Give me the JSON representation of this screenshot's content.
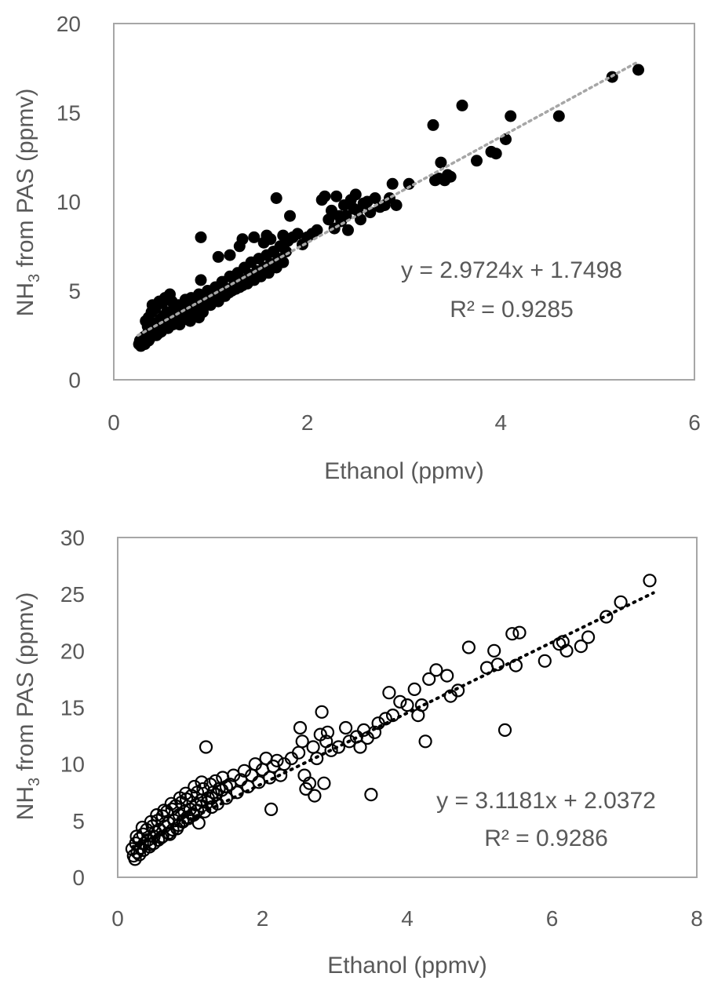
{
  "chart_data": [
    {
      "type": "scatter",
      "xlabel": "Ethanol (ppmv)",
      "ylabel_main": "NH",
      "ylabel_sub": "3",
      "ylabel_rest": " from PAS (ppmv)",
      "xlim": [
        0,
        6
      ],
      "ylim": [
        0,
        20
      ],
      "xticks": [
        "0",
        "2",
        "4",
        "6"
      ],
      "yticks": [
        "0",
        "5",
        "10",
        "15",
        "20"
      ],
      "marker": "filled",
      "marker_color": "#000000",
      "trend_color": "#a6a6a6",
      "equation": "y = 2.9724x + 1.7498",
      "r2": "R² = 0.9285",
      "trend": {
        "slope": 2.9724,
        "intercept": 1.7498,
        "x_start": 0.25,
        "x_end": 5.4
      },
      "points": [
        [
          0.26,
          2.0
        ],
        [
          0.27,
          2.2
        ],
        [
          0.3,
          2.1
        ],
        [
          0.31,
          2.4
        ],
        [
          0.33,
          2.3
        ],
        [
          0.35,
          2.6
        ],
        [
          0.36,
          2.2
        ],
        [
          0.38,
          2.8
        ],
        [
          0.4,
          2.5
        ],
        [
          0.41,
          3.0
        ],
        [
          0.43,
          2.7
        ],
        [
          0.45,
          3.2
        ],
        [
          0.46,
          2.6
        ],
        [
          0.48,
          3.4
        ],
        [
          0.5,
          2.9
        ],
        [
          0.52,
          3.6
        ],
        [
          0.54,
          3.1
        ],
        [
          0.55,
          3.8
        ],
        [
          0.57,
          3.3
        ],
        [
          0.6,
          3.5
        ],
        [
          0.62,
          4.0
        ],
        [
          0.63,
          3.4
        ],
        [
          0.65,
          3.7
        ],
        [
          0.67,
          4.2
        ],
        [
          0.7,
          3.6
        ],
        [
          0.72,
          4.0
        ],
        [
          0.74,
          4.5
        ],
        [
          0.76,
          3.8
        ],
        [
          0.78,
          4.2
        ],
        [
          0.8,
          4.6
        ],
        [
          0.33,
          3.3
        ],
        [
          0.36,
          3.5
        ],
        [
          0.39,
          3.8
        ],
        [
          0.4,
          4.2
        ],
        [
          0.43,
          4.0
        ],
        [
          0.47,
          4.4
        ],
        [
          0.5,
          4.3
        ],
        [
          0.53,
          4.6
        ],
        [
          0.58,
          4.8
        ],
        [
          0.6,
          4.4
        ],
        [
          0.35,
          3.0
        ],
        [
          0.42,
          2.9
        ],
        [
          0.47,
          3.1
        ],
        [
          0.55,
          3.0
        ],
        [
          0.62,
          3.2
        ],
        [
          0.68,
          3.1
        ],
        [
          0.73,
          3.4
        ],
        [
          0.79,
          3.3
        ],
        [
          0.84,
          3.6
        ],
        [
          0.88,
          3.5
        ],
        [
          0.82,
          4.0
        ],
        [
          0.85,
          4.3
        ],
        [
          0.88,
          4.8
        ],
        [
          0.9,
          5.6
        ],
        [
          0.92,
          3.8
        ],
        [
          0.95,
          4.4
        ],
        [
          0.97,
          5.0
        ],
        [
          1.0,
          4.2
        ],
        [
          1.02,
          4.6
        ],
        [
          1.05,
          5.2
        ],
        [
          1.08,
          4.4
        ],
        [
          1.1,
          4.9
        ],
        [
          1.12,
          5.5
        ],
        [
          1.15,
          4.7
        ],
        [
          1.18,
          5.1
        ],
        [
          1.2,
          5.8
        ],
        [
          1.22,
          5.0
        ],
        [
          1.25,
          5.4
        ],
        [
          1.28,
          6.0
        ],
        [
          1.3,
          5.2
        ],
        [
          1.32,
          5.6
        ],
        [
          1.35,
          6.3
        ],
        [
          1.38,
          5.4
        ],
        [
          1.4,
          5.9
        ],
        [
          1.42,
          6.6
        ],
        [
          1.45,
          5.6
        ],
        [
          1.48,
          6.1
        ],
        [
          1.5,
          6.8
        ],
        [
          1.52,
          5.8
        ],
        [
          1.55,
          6.3
        ],
        [
          1.58,
          7.0
        ],
        [
          1.6,
          6.0
        ],
        [
          1.62,
          6.5
        ],
        [
          1.65,
          7.2
        ],
        [
          1.68,
          6.3
        ],
        [
          1.7,
          6.8
        ],
        [
          1.72,
          7.5
        ],
        [
          1.75,
          6.6
        ],
        [
          1.78,
          7.2
        ],
        [
          1.8,
          7.8
        ],
        [
          0.9,
          8.0
        ],
        [
          1.08,
          6.9
        ],
        [
          1.2,
          7.0
        ],
        [
          1.3,
          7.5
        ],
        [
          1.33,
          7.9
        ],
        [
          1.45,
          8.0
        ],
        [
          1.55,
          7.7
        ],
        [
          1.58,
          8.1
        ],
        [
          1.62,
          7.9
        ],
        [
          1.68,
          10.2
        ],
        [
          1.75,
          8.1
        ],
        [
          1.82,
          9.2
        ],
        [
          1.85,
          8.0
        ],
        [
          1.9,
          8.2
        ],
        [
          1.95,
          7.6
        ],
        [
          2.0,
          8.0
        ],
        [
          2.05,
          8.2
        ],
        [
          2.1,
          8.4
        ],
        [
          2.15,
          10.1
        ],
        [
          2.18,
          10.3
        ],
        [
          2.22,
          9.0
        ],
        [
          2.25,
          9.5
        ],
        [
          2.28,
          8.5
        ],
        [
          2.3,
          10.3
        ],
        [
          2.33,
          9.2
        ],
        [
          2.35,
          8.9
        ],
        [
          2.38,
          9.8
        ],
        [
          2.4,
          9.2
        ],
        [
          2.42,
          8.4
        ],
        [
          2.45,
          10.1
        ],
        [
          2.48,
          9.6
        ],
        [
          2.5,
          10.4
        ],
        [
          2.52,
          9.5
        ],
        [
          2.55,
          9.0
        ],
        [
          2.58,
          9.9
        ],
        [
          2.62,
          10.0
        ],
        [
          2.65,
          9.4
        ],
        [
          2.7,
          10.2
        ],
        [
          2.75,
          9.7
        ],
        [
          2.8,
          9.8
        ],
        [
          2.85,
          10.2
        ],
        [
          2.88,
          11.0
        ],
        [
          2.92,
          9.8
        ],
        [
          3.05,
          11.0
        ],
        [
          3.3,
          14.3
        ],
        [
          3.32,
          11.2
        ],
        [
          3.36,
          11.3
        ],
        [
          3.38,
          12.2
        ],
        [
          3.42,
          11.2
        ],
        [
          3.45,
          11.5
        ],
        [
          3.48,
          11.4
        ],
        [
          3.6,
          15.4
        ],
        [
          3.75,
          12.3
        ],
        [
          3.9,
          12.8
        ],
        [
          3.95,
          12.7
        ],
        [
          4.05,
          13.5
        ],
        [
          4.1,
          14.8
        ],
        [
          4.6,
          14.8
        ],
        [
          5.15,
          17.0
        ],
        [
          5.42,
          17.4
        ],
        [
          0.28,
          1.9
        ],
        [
          0.32,
          2.0
        ],
        [
          0.37,
          2.3
        ],
        [
          0.44,
          2.5
        ],
        [
          0.49,
          2.7
        ],
        [
          0.56,
          2.9
        ],
        [
          0.61,
          3.1
        ],
        [
          0.66,
          3.3
        ],
        [
          0.71,
          3.5
        ],
        [
          0.77,
          3.7
        ],
        [
          0.86,
          3.9
        ],
        [
          0.93,
          4.1
        ],
        [
          0.99,
          4.3
        ],
        [
          1.06,
          4.5
        ],
        [
          1.13,
          4.7
        ],
        [
          1.19,
          4.9
        ],
        [
          1.26,
          5.1
        ],
        [
          1.33,
          5.3
        ],
        [
          1.39,
          5.5
        ],
        [
          1.46,
          5.8
        ]
      ]
    },
    {
      "type": "scatter",
      "xlabel": "Ethanol (ppmv)",
      "ylabel_main": "NH",
      "ylabel_sub": "3",
      "ylabel_rest": " from PAS (ppmv)",
      "xlim": [
        0,
        8
      ],
      "ylim": [
        0,
        30
      ],
      "xticks": [
        "0",
        "2",
        "4",
        "6",
        "8"
      ],
      "yticks": [
        "0",
        "5",
        "10",
        "15",
        "20",
        "25",
        "30"
      ],
      "marker": "open",
      "marker_color": "#000000",
      "trend_color": "#000000",
      "equation": "y = 3.1181x + 2.0372",
      "r2": "R² = 0.9286",
      "trend": {
        "slope": 3.1181,
        "intercept": 2.0372,
        "x_start": 0.2,
        "x_end": 7.4
      },
      "points": [
        [
          0.2,
          2.5
        ],
        [
          0.22,
          1.9
        ],
        [
          0.25,
          3.0
        ],
        [
          0.27,
          2.2
        ],
        [
          0.3,
          3.4
        ],
        [
          0.32,
          2.6
        ],
        [
          0.35,
          3.8
        ],
        [
          0.37,
          3.0
        ],
        [
          0.4,
          4.2
        ],
        [
          0.42,
          3.3
        ],
        [
          0.45,
          2.9
        ],
        [
          0.48,
          4.5
        ],
        [
          0.5,
          3.6
        ],
        [
          0.52,
          4.0
        ],
        [
          0.55,
          5.0
        ],
        [
          0.58,
          4.2
        ],
        [
          0.6,
          3.5
        ],
        [
          0.62,
          5.4
        ],
        [
          0.65,
          4.5
        ],
        [
          0.68,
          5.8
        ],
        [
          0.7,
          4.8
        ],
        [
          0.72,
          3.8
        ],
        [
          0.75,
          6.0
        ],
        [
          0.78,
          5.0
        ],
        [
          0.8,
          6.3
        ],
        [
          0.82,
          4.3
        ],
        [
          0.85,
          5.5
        ],
        [
          0.88,
          6.6
        ],
        [
          0.9,
          5.0
        ],
        [
          0.92,
          5.8
        ],
        [
          0.95,
          6.9
        ],
        [
          0.98,
          5.2
        ],
        [
          1.0,
          6.0
        ],
        [
          1.02,
          7.2
        ],
        [
          1.05,
          5.5
        ],
        [
          1.08,
          6.4
        ],
        [
          1.1,
          7.5
        ],
        [
          1.12,
          4.8
        ],
        [
          1.15,
          6.8
        ],
        [
          1.18,
          7.8
        ],
        [
          1.2,
          5.8
        ],
        [
          1.22,
          11.5
        ],
        [
          1.25,
          7.0
        ],
        [
          1.28,
          8.2
        ],
        [
          1.3,
          6.2
        ],
        [
          1.32,
          7.5
        ],
        [
          1.35,
          8.5
        ],
        [
          1.38,
          6.5
        ],
        [
          1.4,
          7.8
        ],
        [
          1.45,
          8.8
        ],
        [
          1.5,
          7.0
        ],
        [
          1.55,
          8.2
        ],
        [
          1.6,
          9.0
        ],
        [
          1.65,
          7.5
        ],
        [
          1.7,
          8.6
        ],
        [
          1.75,
          9.4
        ],
        [
          1.8,
          8.0
        ],
        [
          1.85,
          9.0
        ],
        [
          1.9,
          10.0
        ],
        [
          1.95,
          8.4
        ],
        [
          2.0,
          9.5
        ],
        [
          2.05,
          10.5
        ],
        [
          2.1,
          8.8
        ],
        [
          2.12,
          6.0
        ],
        [
          2.15,
          9.8
        ],
        [
          2.2,
          10.3
        ],
        [
          2.25,
          9.0
        ],
        [
          2.3,
          10.0
        ],
        [
          2.4,
          10.5
        ],
        [
          2.5,
          11.0
        ],
        [
          2.52,
          13.2
        ],
        [
          2.55,
          12.0
        ],
        [
          2.58,
          9.0
        ],
        [
          2.6,
          7.8
        ],
        [
          2.65,
          8.3
        ],
        [
          2.7,
          11.5
        ],
        [
          2.72,
          7.2
        ],
        [
          2.75,
          10.5
        ],
        [
          2.8,
          12.6
        ],
        [
          2.82,
          14.6
        ],
        [
          2.85,
          8.3
        ],
        [
          2.88,
          12.0
        ],
        [
          2.9,
          12.8
        ],
        [
          2.95,
          11.2
        ],
        [
          3.05,
          11.5
        ],
        [
          3.15,
          13.2
        ],
        [
          3.2,
          12.0
        ],
        [
          3.3,
          12.4
        ],
        [
          3.35,
          11.5
        ],
        [
          3.4,
          13.0
        ],
        [
          3.45,
          12.3
        ],
        [
          3.5,
          7.3
        ],
        [
          3.55,
          12.8
        ],
        [
          3.6,
          13.6
        ],
        [
          3.7,
          14.0
        ],
        [
          3.75,
          16.3
        ],
        [
          3.8,
          14.3
        ],
        [
          3.9,
          15.5
        ],
        [
          4.0,
          15.2
        ],
        [
          4.1,
          16.6
        ],
        [
          4.15,
          14.3
        ],
        [
          4.2,
          15.2
        ],
        [
          4.25,
          12.0
        ],
        [
          4.3,
          17.5
        ],
        [
          4.4,
          18.3
        ],
        [
          4.55,
          17.8
        ],
        [
          4.6,
          16.0
        ],
        [
          4.7,
          16.5
        ],
        [
          4.85,
          20.3
        ],
        [
          5.1,
          18.5
        ],
        [
          5.2,
          20.0
        ],
        [
          5.25,
          18.8
        ],
        [
          5.35,
          13.0
        ],
        [
          5.45,
          21.5
        ],
        [
          5.5,
          18.7
        ],
        [
          5.55,
          21.6
        ],
        [
          5.9,
          19.1
        ],
        [
          6.1,
          20.6
        ],
        [
          6.2,
          20.0
        ],
        [
          6.15,
          20.8
        ],
        [
          6.4,
          20.4
        ],
        [
          6.5,
          21.2
        ],
        [
          6.75,
          23.0
        ],
        [
          6.95,
          24.3
        ],
        [
          7.35,
          26.2
        ],
        [
          0.24,
          1.6
        ],
        [
          0.3,
          2.0
        ],
        [
          0.36,
          2.4
        ],
        [
          0.44,
          2.7
        ],
        [
          0.5,
          3.0
        ],
        [
          0.56,
          3.3
        ],
        [
          0.62,
          3.6
        ],
        [
          0.7,
          3.9
        ],
        [
          0.76,
          4.2
        ],
        [
          0.84,
          4.6
        ],
        [
          0.9,
          4.9
        ],
        [
          0.96,
          5.3
        ],
        [
          1.04,
          5.6
        ],
        [
          1.1,
          5.9
        ],
        [
          1.16,
          6.3
        ],
        [
          1.24,
          6.6
        ],
        [
          1.3,
          7.0
        ],
        [
          1.36,
          7.3
        ],
        [
          1.44,
          7.7
        ],
        [
          1.5,
          8.0
        ],
        [
          0.26,
          3.6
        ],
        [
          0.34,
          4.4
        ],
        [
          0.46,
          4.9
        ],
        [
          0.54,
          5.5
        ],
        [
          0.64,
          5.9
        ],
        [
          0.74,
          6.5
        ],
        [
          0.86,
          7.0
        ],
        [
          0.94,
          7.4
        ],
        [
          1.06,
          8.0
        ],
        [
          1.16,
          8.4
        ]
      ]
    }
  ]
}
